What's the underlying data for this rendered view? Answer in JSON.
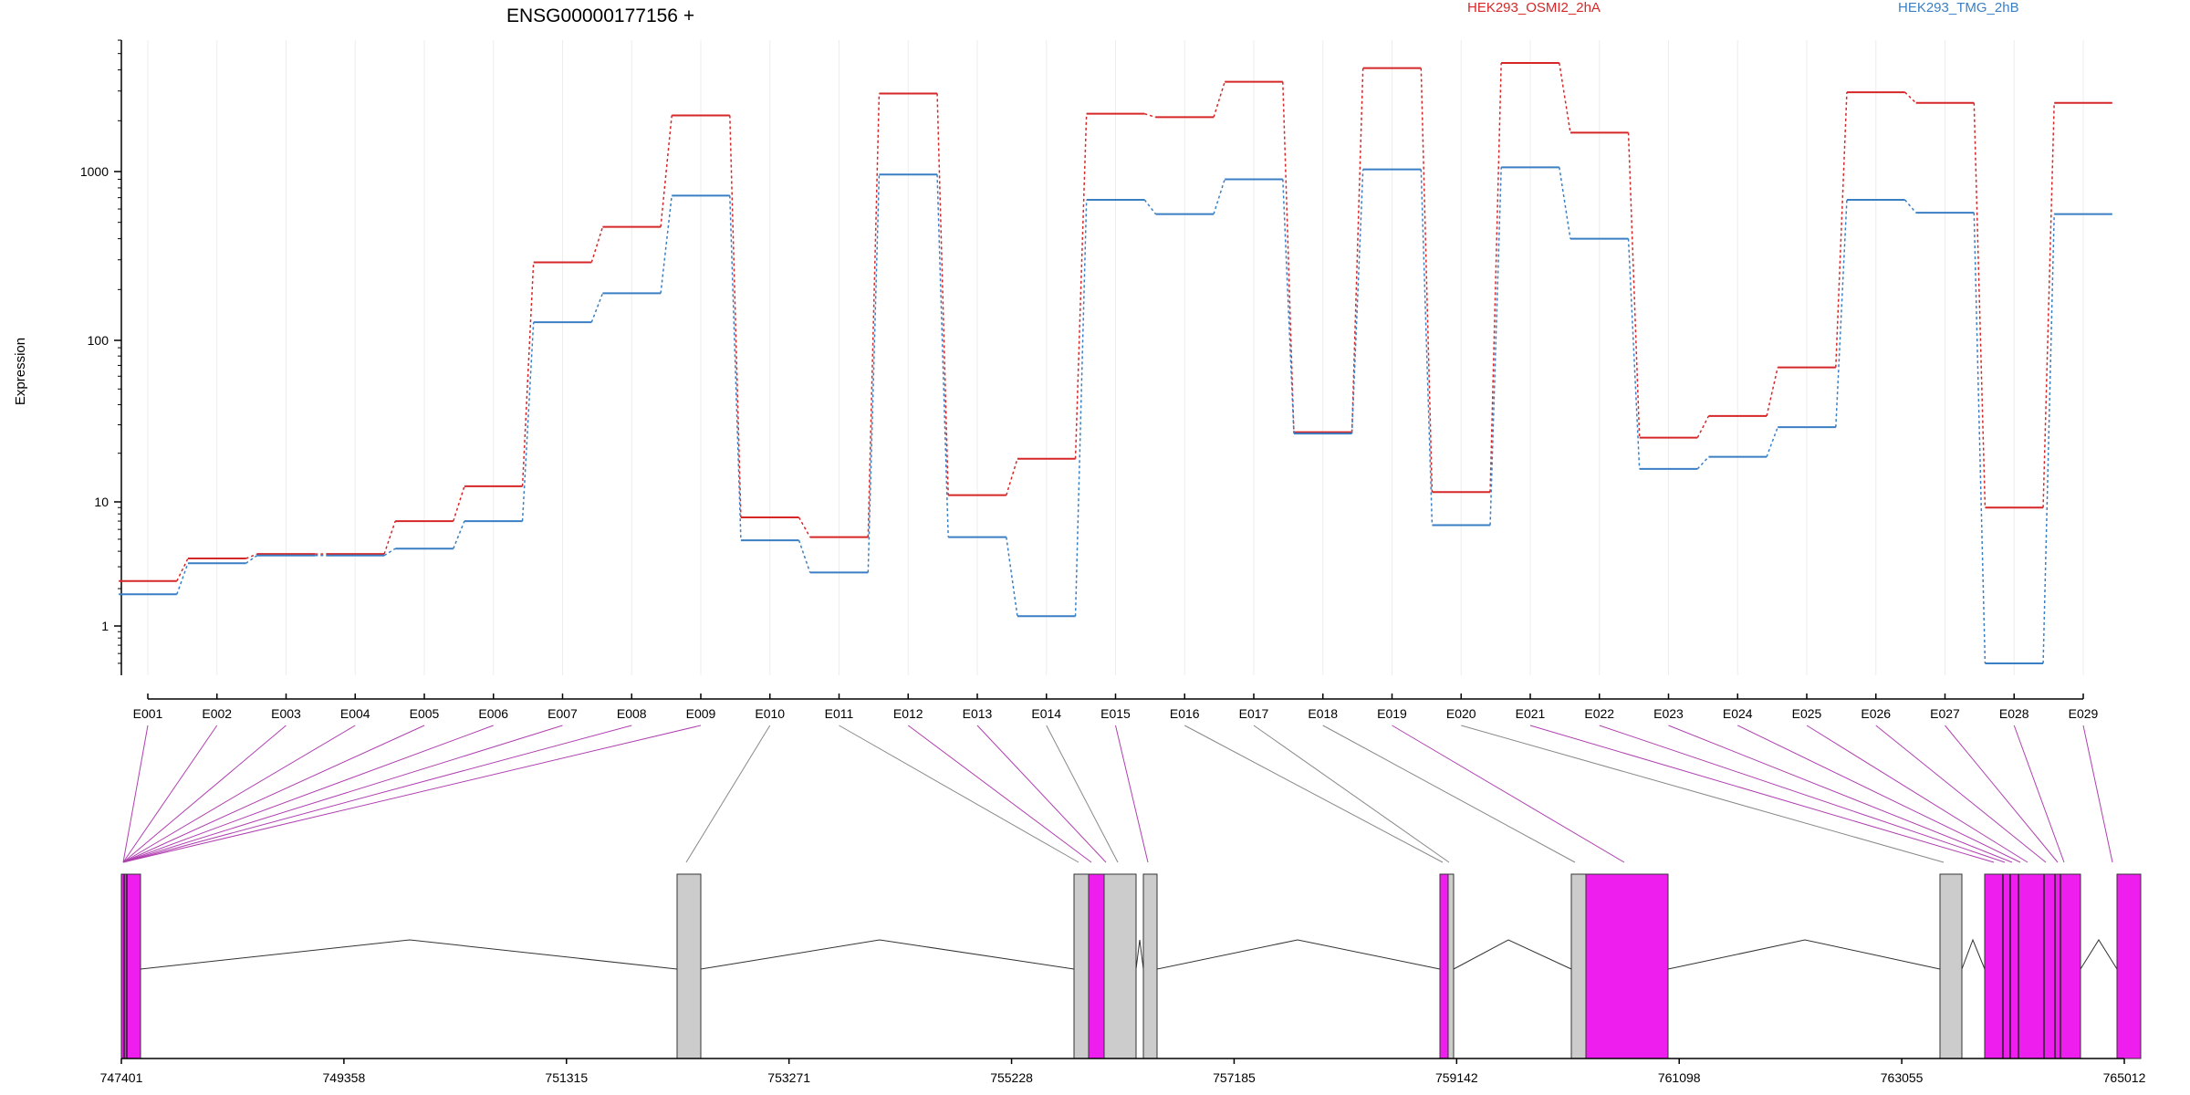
{
  "chart_data": {
    "type": "line",
    "title": "ENSG00000177156 +",
    "ylabel": "Expression",
    "yscale": "log",
    "ylim": [
      0.4,
      8000
    ],
    "yticks": [
      {
        "value": 1,
        "label": "1"
      },
      {
        "value": 10,
        "label": "10"
      },
      {
        "value": 100,
        "label": "100"
      },
      {
        "value": 1000,
        "label": "1000"
      }
    ],
    "categories": [
      "E001",
      "E002",
      "E003",
      "E004",
      "E005",
      "E006",
      "E007",
      "E008",
      "E009",
      "E010",
      "E011",
      "E012",
      "E013",
      "E014",
      "E015",
      "E016",
      "E017",
      "E018",
      "E019",
      "E020",
      "E021",
      "E022",
      "E023",
      "E024",
      "E025",
      "E026",
      "E027",
      "E028",
      "E029"
    ],
    "series": [
      {
        "name": "HEK293_OSMI2_2hA",
        "color": "#d62728",
        "values": [
          2.3,
          3.5,
          3.8,
          3.8,
          7.0,
          12.5,
          290,
          470,
          2150,
          7.5,
          5.2,
          2900,
          11,
          18.5,
          2200,
          2100,
          3400,
          27,
          4100,
          11.5,
          4400,
          1700,
          25,
          34,
          68,
          2950,
          2550,
          9,
          2550
        ]
      },
      {
        "name": "HEK293_TMG_2hB",
        "color": "#3a7fc4",
        "values": [
          1.8,
          3.2,
          3.7,
          3.7,
          4.2,
          7.0,
          128,
          190,
          720,
          4.9,
          2.7,
          960,
          5.2,
          1.2,
          680,
          560,
          900,
          26.5,
          1030,
          6.5,
          1060,
          400,
          16,
          19,
          29,
          680,
          570,
          0.5,
          560
        ]
      }
    ],
    "gene_model": {
      "coordinates": [
        "747401",
        "749358",
        "751315",
        "753271",
        "755228",
        "757185",
        "759142",
        "761098",
        "763055",
        "765012"
      ],
      "exon_colors": {
        "significant": "#ee1eee",
        "other": "#cccccc"
      }
    }
  }
}
